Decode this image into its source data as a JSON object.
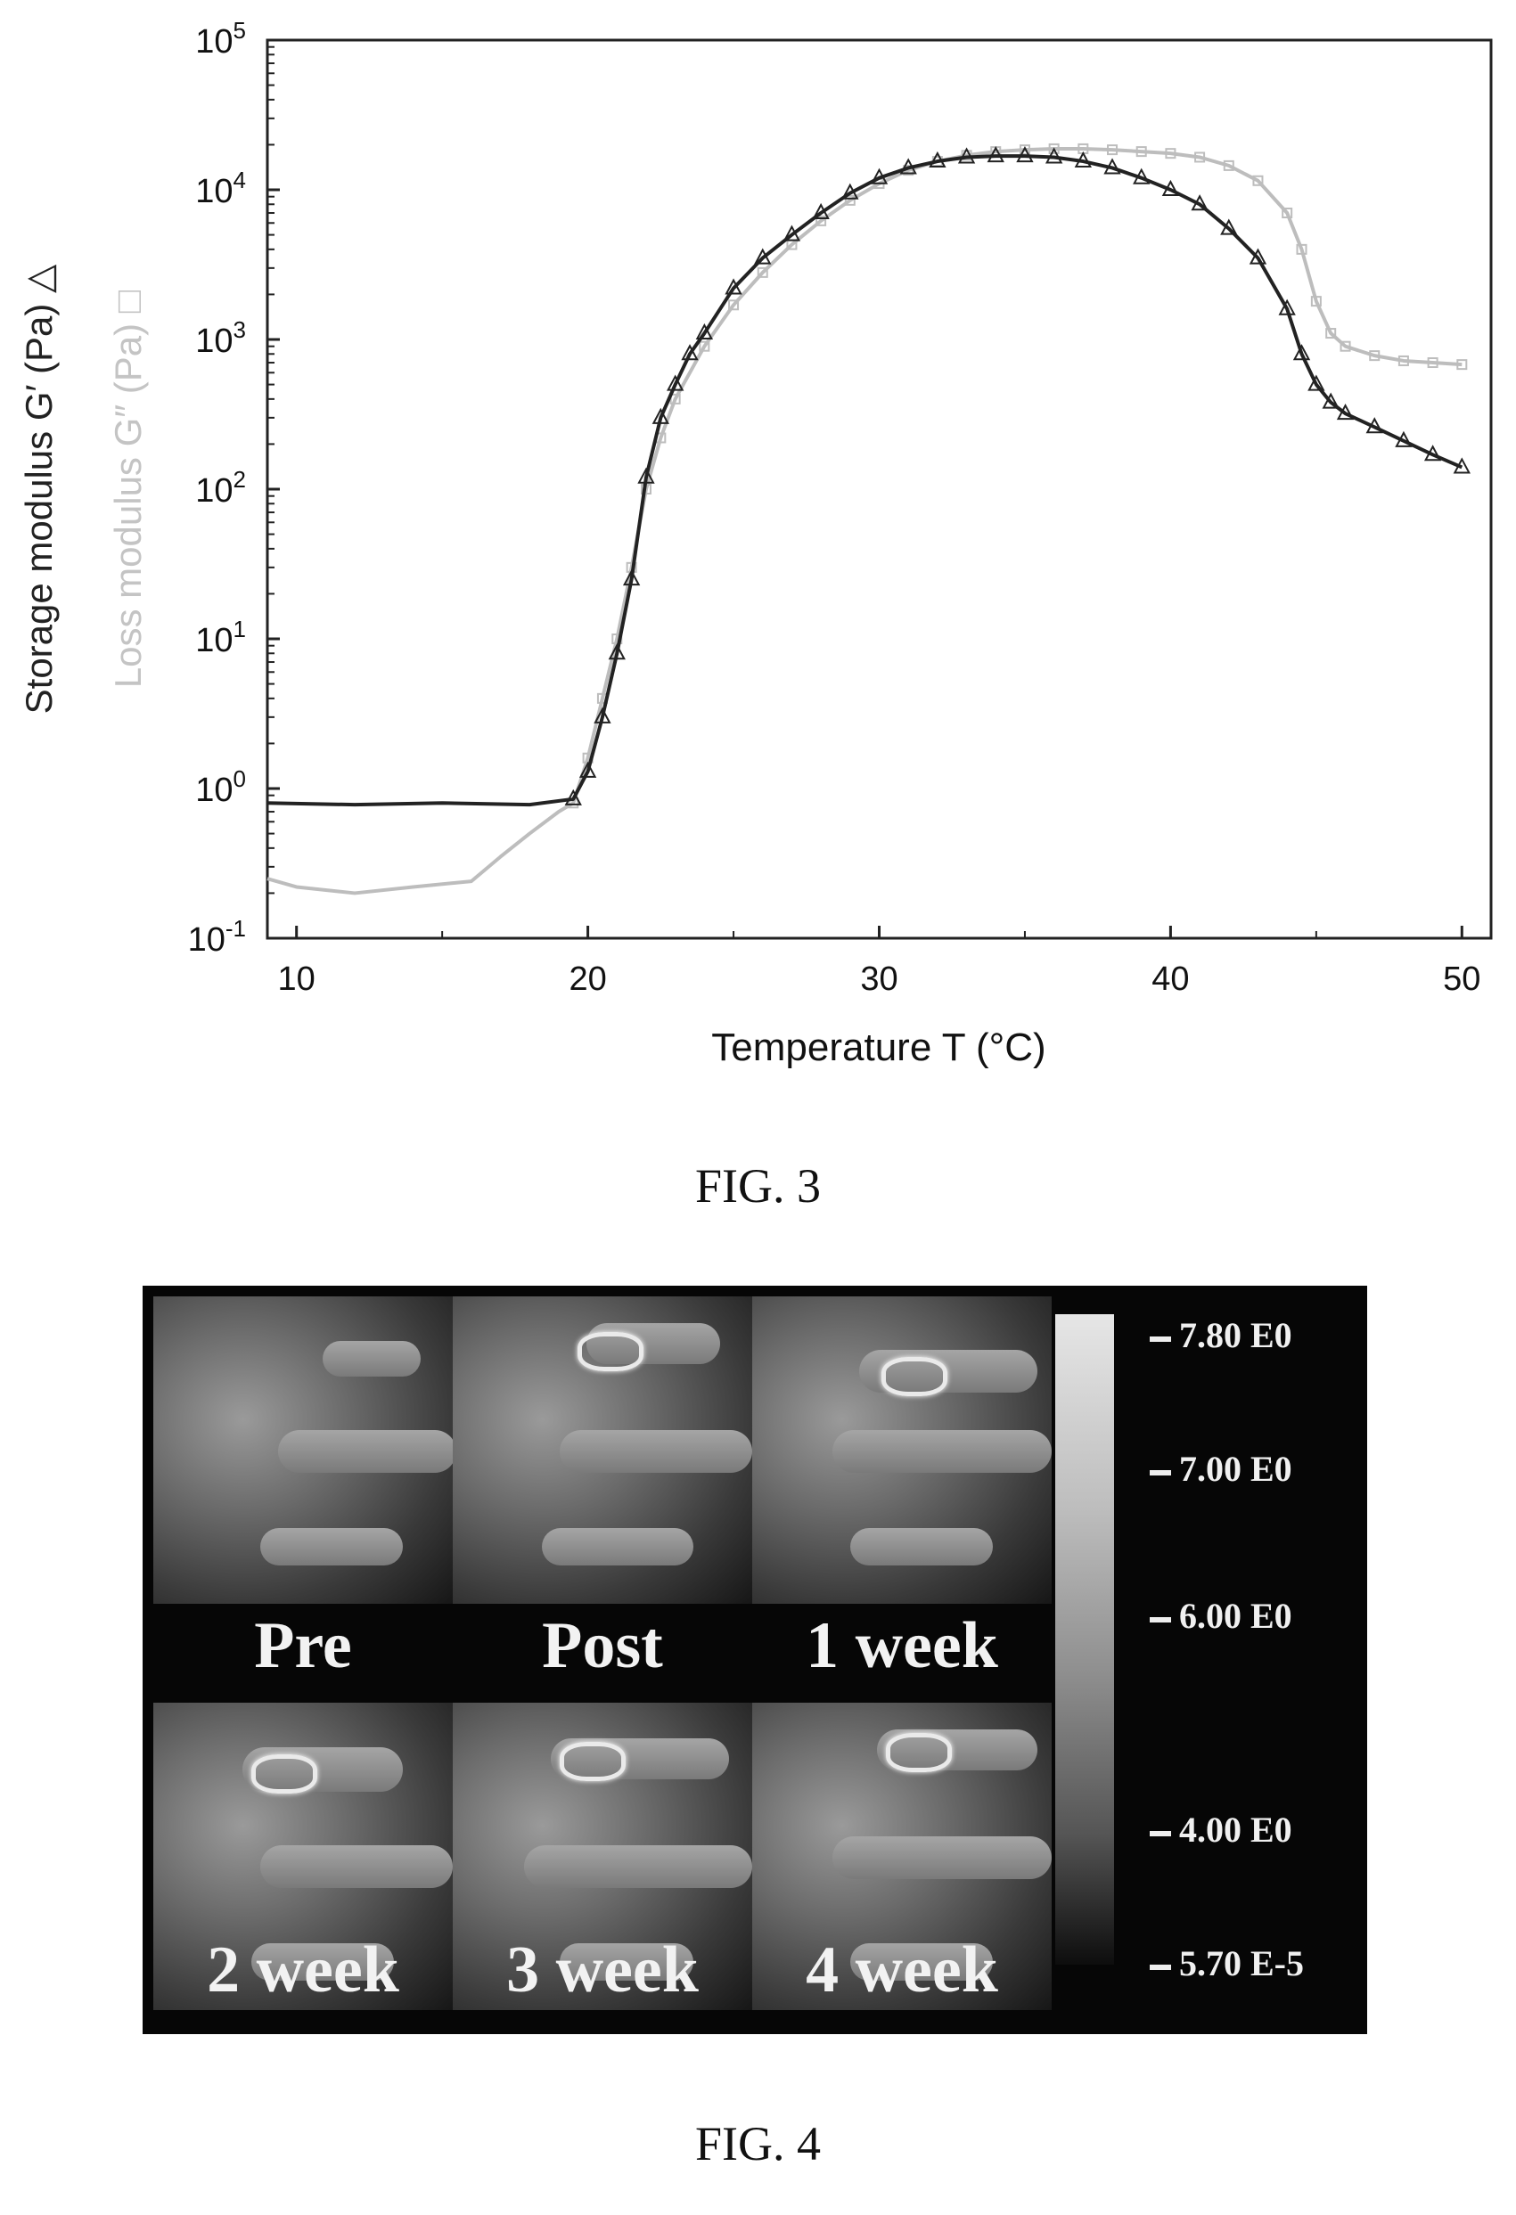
{
  "chart_data": {
    "type": "line",
    "title": "",
    "xlabel": "Temperature T (°C)",
    "ylabel": "Storage modulus G′ (Pa) △",
    "ylabel2": "Loss modulus G″ (Pa) □",
    "yscale": "log",
    "xlim": [
      9,
      51
    ],
    "ylim": [
      0.1,
      100000
    ],
    "x_ticks": [
      "10",
      "20",
      "30",
      "40",
      "50"
    ],
    "y_ticks": [
      "10^-1",
      "10^0",
      "10^1",
      "10^2",
      "10^3",
      "10^4",
      "10^5"
    ],
    "grid": false,
    "series": [
      {
        "name": "Storage modulus G′",
        "color": "#222222",
        "marker": "triangle",
        "x": [
          9,
          12,
          15,
          18,
          19.5,
          20,
          20.5,
          21,
          21.5,
          22,
          22.5,
          23,
          23.5,
          24,
          25,
          26,
          27,
          28,
          29,
          30,
          31,
          32,
          33,
          34,
          35,
          36,
          37,
          38,
          39,
          40,
          41,
          42,
          43,
          44,
          44.5,
          45,
          45.5,
          46,
          47,
          48,
          49,
          50
        ],
        "y": [
          0.8,
          0.78,
          0.8,
          0.78,
          0.85,
          1.3,
          3,
          8,
          25,
          120,
          300,
          500,
          800,
          1100,
          2200,
          3500,
          5000,
          7000,
          9500,
          12000,
          14000,
          15500,
          16500,
          16800,
          16800,
          16500,
          15500,
          14000,
          12000,
          10000,
          8000,
          5500,
          3500,
          1600,
          800,
          500,
          380,
          320,
          260,
          210,
          170,
          140
        ]
      },
      {
        "name": "Loss modulus G″",
        "color": "#bdbdbd",
        "marker": "square",
        "x": [
          9,
          10,
          12,
          14,
          16,
          17,
          18,
          19,
          19.5,
          20,
          20.5,
          21,
          21.5,
          22,
          22.5,
          23,
          24,
          25,
          26,
          27,
          28,
          29,
          30,
          31,
          32,
          33,
          34,
          35,
          36,
          37,
          38,
          39,
          40,
          41,
          42,
          43,
          44,
          44.5,
          45,
          45.5,
          46,
          47,
          48,
          49,
          50
        ],
        "y": [
          0.25,
          0.22,
          0.2,
          0.22,
          0.24,
          0.35,
          0.5,
          0.7,
          0.8,
          1.6,
          4,
          10,
          30,
          100,
          220,
          400,
          900,
          1700,
          2800,
          4300,
          6200,
          8500,
          11000,
          13500,
          15500,
          17000,
          18000,
          18500,
          18800,
          18800,
          18500,
          18000,
          17500,
          16500,
          14500,
          11500,
          7000,
          4000,
          1800,
          1100,
          900,
          780,
          720,
          700,
          680
        ]
      }
    ]
  },
  "figures": {
    "fig3_caption": "FIG. 3",
    "fig4_caption": "FIG. 4"
  },
  "fig4": {
    "panels": [
      {
        "label": "Pre"
      },
      {
        "label": "Post"
      },
      {
        "label": "1 week"
      },
      {
        "label": "2 week"
      },
      {
        "label": "3 week"
      },
      {
        "label": "4 week"
      }
    ],
    "colorbar_labels": [
      "7.80 E0",
      "7.00 E0",
      "6.00 E0",
      "4.00 E0",
      "5.70 E-5"
    ]
  }
}
